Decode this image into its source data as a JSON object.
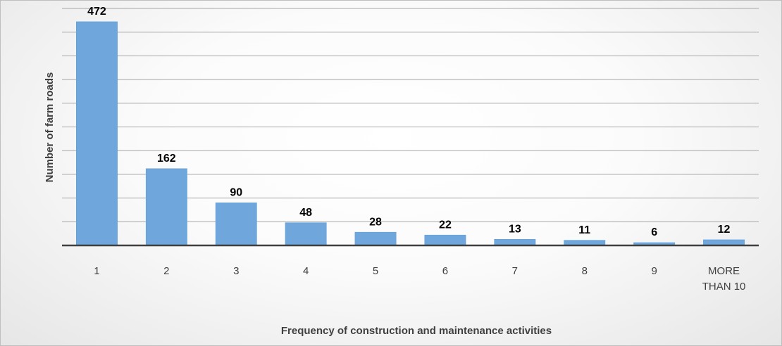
{
  "chart_data": {
    "type": "bar",
    "x_label": "Frequency of  construction and maintenance activities",
    "y_label": "Number of farm roads",
    "categories": [
      "1",
      "2",
      "3",
      "4",
      "5",
      "6",
      "7",
      "8",
      "9",
      "MORE THAN 10"
    ],
    "values": [
      472,
      162,
      90,
      48,
      28,
      22,
      13,
      11,
      6,
      12
    ],
    "color": "#6fa6dc",
    "ylim": [
      0,
      500
    ],
    "yticks": [
      0,
      50,
      100,
      150,
      200,
      250,
      300,
      350,
      400,
      450,
      500
    ],
    "grid": true
  }
}
